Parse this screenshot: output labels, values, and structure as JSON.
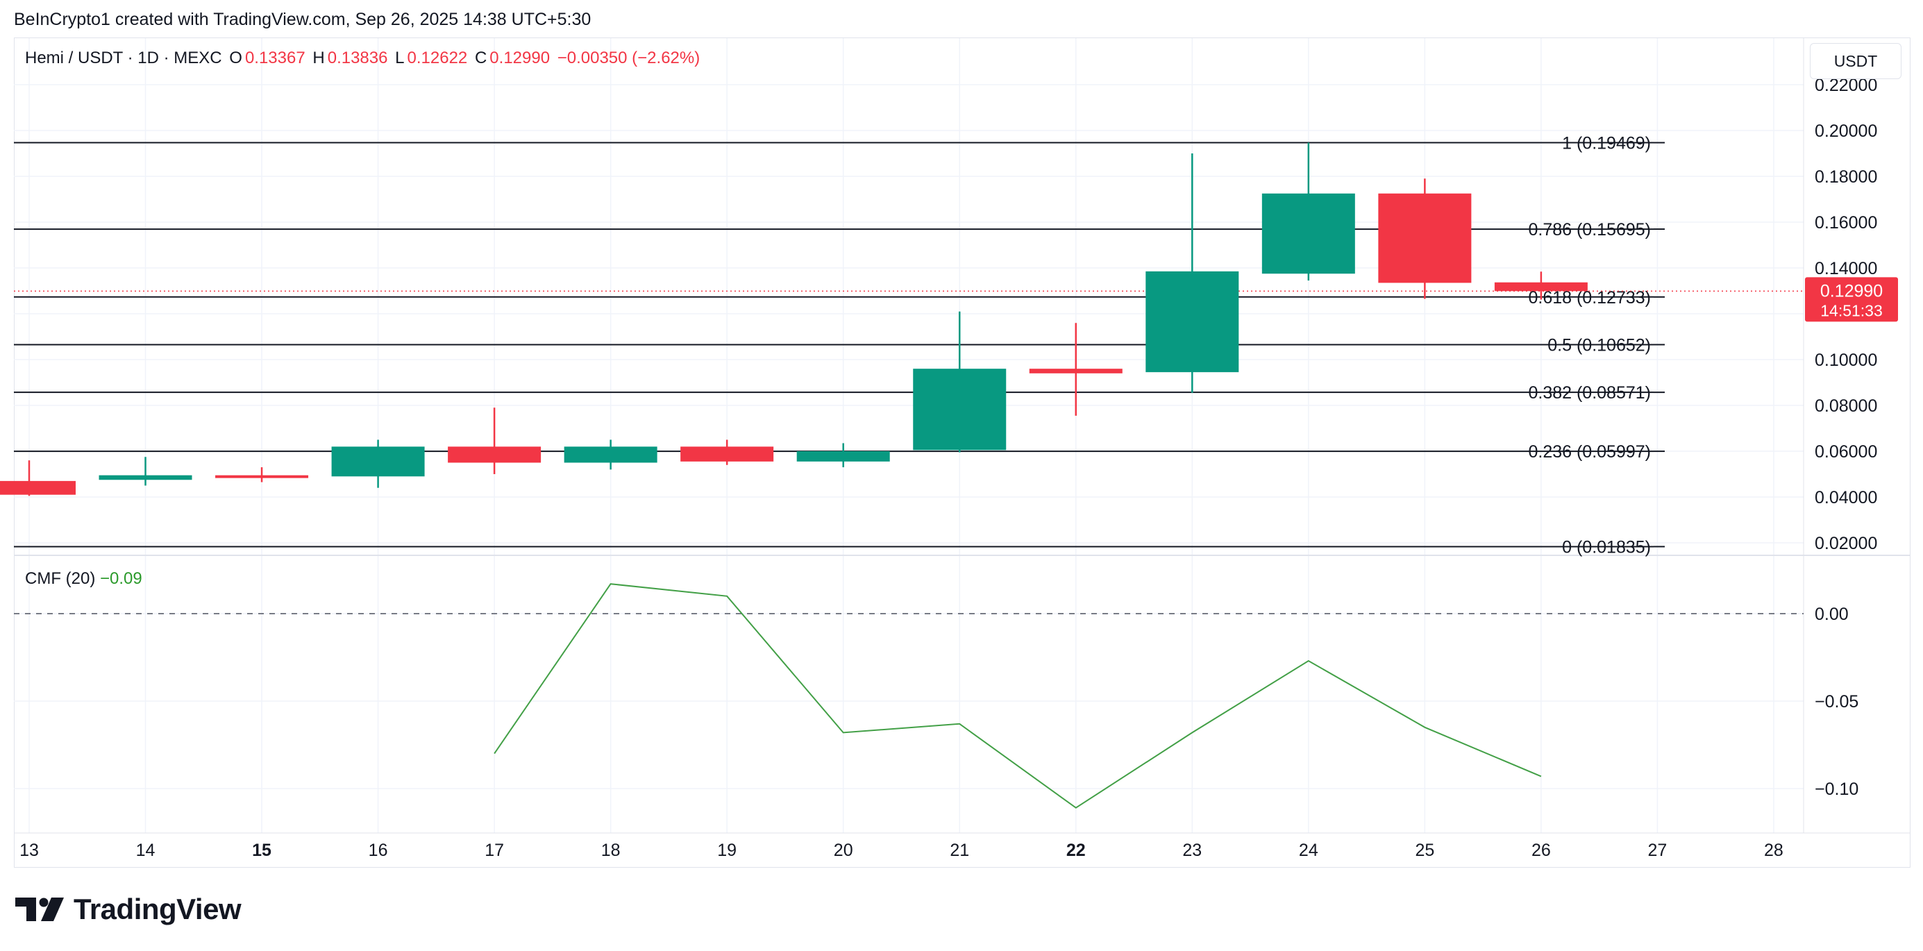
{
  "credit": "BeInCrypto1 created with TradingView.com, Sep 26, 2025 14:38 UTC+5:30",
  "legend": {
    "symbol": "Hemi / USDT · 1D · MEXC",
    "o_label": "O",
    "o_value": "0.13367",
    "h_label": "H",
    "h_value": "0.13836",
    "l_label": "L",
    "l_value": "0.12622",
    "c_label": "C",
    "c_value": "0.12990",
    "change": "−0.00350 (−2.62%)"
  },
  "currency_button": "USDT",
  "price_tag": {
    "price": "0.12990",
    "countdown": "14:51:33"
  },
  "cmf_legend": {
    "name": "CMF (20)",
    "value": "−0.09"
  },
  "brand": "TradingView",
  "colors": {
    "up": "#089981",
    "down": "#f23645",
    "cmf_line": "#43a047",
    "fib_line": "#131722",
    "grid": "#f0f3fa"
  },
  "chart_data": [
    {
      "type": "candlestick",
      "x_ticks": [
        {
          "label": "13",
          "bold": false
        },
        {
          "label": "14",
          "bold": false
        },
        {
          "label": "15",
          "bold": true
        },
        {
          "label": "16",
          "bold": false
        },
        {
          "label": "17",
          "bold": false
        },
        {
          "label": "18",
          "bold": false
        },
        {
          "label": "19",
          "bold": false
        },
        {
          "label": "20",
          "bold": false
        },
        {
          "label": "21",
          "bold": false
        },
        {
          "label": "22",
          "bold": true
        },
        {
          "label": "23",
          "bold": false
        },
        {
          "label": "24",
          "bold": false
        },
        {
          "label": "25",
          "bold": false
        },
        {
          "label": "26",
          "bold": false
        },
        {
          "label": "27",
          "bold": false
        },
        {
          "label": "28",
          "bold": false
        }
      ],
      "y_ticks": [
        0.02,
        0.04,
        0.06,
        0.08,
        0.1,
        0.12,
        0.14,
        0.16,
        0.18,
        0.2,
        0.22
      ],
      "y_tick_labels": [
        "0.02000",
        "0.04000",
        "0.06000",
        "0.08000",
        "0.10000",
        "0.12000",
        "0.14000",
        "0.16000",
        "0.18000",
        "0.20000",
        "0.22000"
      ],
      "candles": [
        {
          "day": 13,
          "open": 0.047,
          "high": 0.056,
          "low": 0.0405,
          "close": 0.041
        },
        {
          "day": 14,
          "open": 0.0475,
          "high": 0.0575,
          "low": 0.045,
          "close": 0.0495
        },
        {
          "day": 15,
          "open": 0.0495,
          "high": 0.053,
          "low": 0.0465,
          "close": 0.0485
        },
        {
          "day": 16,
          "open": 0.049,
          "high": 0.065,
          "low": 0.044,
          "close": 0.062
        },
        {
          "day": 17,
          "open": 0.062,
          "high": 0.079,
          "low": 0.05,
          "close": 0.055
        },
        {
          "day": 18,
          "open": 0.055,
          "high": 0.065,
          "low": 0.052,
          "close": 0.062
        },
        {
          "day": 19,
          "open": 0.062,
          "high": 0.065,
          "low": 0.054,
          "close": 0.0555
        },
        {
          "day": 20,
          "open": 0.0555,
          "high": 0.0635,
          "low": 0.053,
          "close": 0.06
        },
        {
          "day": 21,
          "open": 0.0605,
          "high": 0.121,
          "low": 0.0595,
          "close": 0.096
        },
        {
          "day": 22,
          "open": 0.096,
          "high": 0.116,
          "low": 0.0755,
          "close": 0.094
        },
        {
          "day": 23,
          "open": 0.0945,
          "high": 0.19,
          "low": 0.0855,
          "close": 0.1385
        },
        {
          "day": 24,
          "open": 0.1375,
          "high": 0.1947,
          "low": 0.1345,
          "close": 0.1725
        },
        {
          "day": 25,
          "open": 0.1725,
          "high": 0.179,
          "low": 0.1265,
          "close": 0.1335
        },
        {
          "day": 26,
          "open": 0.1337,
          "high": 0.1384,
          "low": 0.1262,
          "close": 0.1299
        }
      ],
      "current_price": 0.1299,
      "fib_levels": [
        {
          "label": "1 (0.19469)",
          "value": 0.19469
        },
        {
          "label": "0.786 (0.15695)",
          "value": 0.15695
        },
        {
          "label": "0.618 (0.12733)",
          "value": 0.12733
        },
        {
          "label": "0.5 (0.10652)",
          "value": 0.10652
        },
        {
          "label": "0.382 (0.08571)",
          "value": 0.08571
        },
        {
          "label": "0.236 (0.05997)",
          "value": 0.05997
        },
        {
          "label": "0 (0.01835)",
          "value": 0.01835
        }
      ]
    },
    {
      "type": "line",
      "y_ticks": [
        0.0,
        -0.05,
        -0.1
      ],
      "y_tick_labels": [
        "0.00",
        "−0.05",
        "−0.10"
      ],
      "zero_line": 0.0,
      "series": [
        {
          "x": [
            17,
            18,
            19,
            20,
            21,
            22,
            23,
            24,
            25,
            26
          ],
          "values": [
            -0.08,
            0.017,
            0.01,
            -0.068,
            -0.063,
            -0.111,
            -0.068,
            -0.027,
            -0.065,
            -0.093
          ]
        }
      ]
    }
  ]
}
